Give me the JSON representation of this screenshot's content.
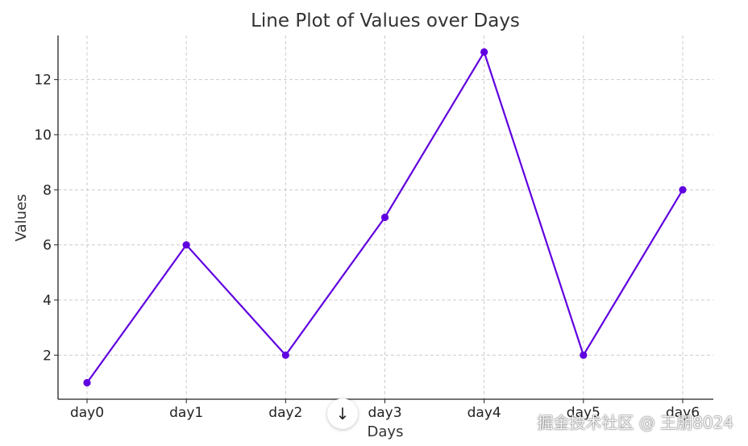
{
  "chart_data": {
    "type": "line",
    "title": "Line Plot of Values over Days",
    "xlabel": "Days",
    "ylabel": "Values",
    "categories": [
      "day0",
      "day1",
      "day2",
      "day3",
      "day4",
      "day5",
      "day6"
    ],
    "series": [
      {
        "values": [
          1,
          6,
          2,
          7,
          13,
          2,
          8
        ],
        "color": "#6000e0",
        "marker": "circle"
      }
    ],
    "ylim": [
      0.4,
      13.6
    ],
    "yticks": [
      2,
      4,
      6,
      8,
      10,
      12
    ],
    "grid": true,
    "spines": [
      "left",
      "bottom"
    ]
  },
  "overlay": {
    "watermark": "掘金技术社区 @ 王朋8024",
    "scroll_icon": "arrow-down-icon",
    "scroll_glyph": "↓"
  }
}
